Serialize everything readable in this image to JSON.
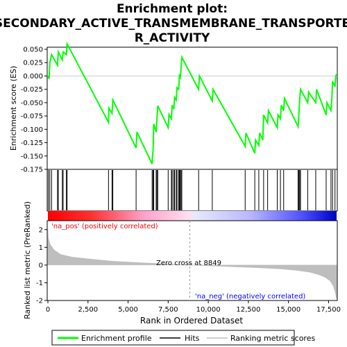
{
  "title_line1": "Enrichment plot:",
  "title_line2": "SECONDARY_ACTIVE_TRANSMEMBRANE_TRANSPORTE",
  "title_line3": "R_ACTIVITY",
  "colors": {
    "es_line": "#00ff00",
    "hits": "#000000",
    "metric": "#bebebe",
    "pos": "#ff0000",
    "neg": "#0000ff"
  },
  "chart_data": {
    "type": "line",
    "xlim": [
      0,
      18000
    ],
    "x_ticks": [
      0,
      2500,
      5000,
      7500,
      10000,
      12500,
      15000,
      17500
    ],
    "x_tick_labels": [
      "0",
      "2,500",
      "5,000",
      "7,500",
      "10,000",
      "12,500",
      "15,000",
      "17,500"
    ],
    "xlabel": "Rank in Ordered Dataset",
    "es_panel": {
      "ylabel": "Enrichment score (ES)",
      "ylim": [
        -0.175,
        0.05
      ],
      "y_ticks": [
        0.05,
        0.025,
        0.0,
        -0.025,
        -0.05,
        -0.075,
        -0.1,
        -0.125,
        -0.15,
        -0.175
      ],
      "y_tick_labels": [
        "0.050",
        "0.025",
        "0.000",
        "-0.025",
        "-0.050",
        "-0.075",
        "-0.100",
        "-0.125",
        "-0.150",
        "-0.175"
      ],
      "series_name": "Enrichment profile",
      "points": [
        [
          0,
          0.0
        ],
        [
          80,
          -0.005
        ],
        [
          120,
          0.025
        ],
        [
          230,
          0.04
        ],
        [
          600,
          0.02
        ],
        [
          650,
          0.045
        ],
        [
          900,
          0.03
        ],
        [
          950,
          0.045
        ],
        [
          1150,
          0.04
        ],
        [
          1200,
          0.06
        ],
        [
          3780,
          -0.087
        ],
        [
          3800,
          -0.06
        ],
        [
          4000,
          -0.07
        ],
        [
          4050,
          -0.045
        ],
        [
          5500,
          -0.135
        ],
        [
          5550,
          -0.105
        ],
        [
          6500,
          -0.165
        ],
        [
          6520,
          -0.15
        ],
        [
          6560,
          -0.14
        ],
        [
          6600,
          -0.09
        ],
        [
          6750,
          -0.105
        ],
        [
          6800,
          -0.08
        ],
        [
          6850,
          -0.056
        ],
        [
          7500,
          -0.097
        ],
        [
          7550,
          -0.072
        ],
        [
          7700,
          -0.08
        ],
        [
          7750,
          -0.055
        ],
        [
          7850,
          -0.062
        ],
        [
          7900,
          -0.04
        ],
        [
          8000,
          -0.045
        ],
        [
          8050,
          -0.022
        ],
        [
          8150,
          -0.025
        ],
        [
          8200,
          0.0
        ],
        [
          8250,
          -0.003
        ],
        [
          8300,
          0.012
        ],
        [
          8350,
          0.035
        ],
        [
          9400,
          -0.025
        ],
        [
          9450,
          0.0
        ],
        [
          10250,
          -0.047
        ],
        [
          10300,
          -0.025
        ],
        [
          12300,
          -0.132
        ],
        [
          12350,
          -0.107
        ],
        [
          12900,
          -0.145
        ],
        [
          12950,
          -0.12
        ],
        [
          13150,
          -0.13
        ],
        [
          13200,
          -0.107
        ],
        [
          13400,
          -0.12
        ],
        [
          13450,
          -0.073
        ],
        [
          13700,
          -0.088
        ],
        [
          13750,
          -0.065
        ],
        [
          14300,
          -0.097
        ],
        [
          14350,
          -0.073
        ],
        [
          14500,
          -0.08
        ],
        [
          14550,
          -0.055
        ],
        [
          14700,
          -0.065
        ],
        [
          14750,
          -0.042
        ],
        [
          15600,
          -0.095
        ],
        [
          15650,
          -0.07
        ],
        [
          15700,
          -0.045
        ],
        [
          15750,
          -0.025
        ],
        [
          16200,
          -0.05
        ],
        [
          16250,
          -0.03
        ],
        [
          16700,
          -0.05
        ],
        [
          16750,
          -0.025
        ],
        [
          17350,
          -0.073
        ],
        [
          17400,
          -0.05
        ],
        [
          17650,
          -0.065
        ],
        [
          17700,
          -0.045
        ],
        [
          17750,
          -0.01
        ],
        [
          17900,
          -0.02
        ],
        [
          17950,
          0.0
        ],
        [
          18000,
          0.003
        ]
      ]
    },
    "hits": {
      "series_name": "Hits",
      "positions": [
        30,
        120,
        230,
        600,
        650,
        900,
        950,
        1150,
        1200,
        3780,
        4000,
        4050,
        5500,
        6500,
        6560,
        6600,
        6750,
        6800,
        6850,
        7500,
        7700,
        7750,
        7850,
        7900,
        8000,
        8050,
        8150,
        8200,
        8250,
        8300,
        8350,
        9400,
        10250,
        12300,
        12900,
        13150,
        13450,
        13700,
        14300,
        14500,
        14700,
        15600,
        15650,
        15700,
        15750,
        16200,
        16700,
        17350,
        17650,
        17750,
        17900
      ]
    },
    "metric_panel": {
      "ylabel": "Ranked list metric (PreRanked)",
      "ylim": [
        -2,
        2.5
      ],
      "y_ticks": [
        2,
        1,
        0,
        -1,
        -2
      ],
      "y_tick_labels": [
        "2",
        "1",
        "0",
        "-1",
        "-2"
      ],
      "series_name": "Ranking metric scores",
      "profile": [
        [
          0,
          2.0
        ],
        [
          40,
          1.5
        ],
        [
          150,
          1.15
        ],
        [
          400,
          0.85
        ],
        [
          800,
          0.6
        ],
        [
          1500,
          0.45
        ],
        [
          2500,
          0.35
        ],
        [
          4000,
          0.22
        ],
        [
          6000,
          0.12
        ],
        [
          8849,
          0.0
        ],
        [
          11000,
          -0.08
        ],
        [
          13000,
          -0.15
        ],
        [
          14500,
          -0.22
        ],
        [
          15500,
          -0.3
        ],
        [
          16300,
          -0.4
        ],
        [
          16900,
          -0.55
        ],
        [
          17300,
          -0.7
        ],
        [
          17600,
          -0.9
        ],
        [
          17800,
          -1.2
        ],
        [
          17900,
          -1.5
        ],
        [
          18000,
          -1.9
        ]
      ],
      "zero_cross_label": "Zero cross at 8849",
      "zero_cross": 8849,
      "pos_label": "'na_pos' (positively correlated)",
      "neg_label": "'na_neg' (negatively correlated)"
    },
    "legend": {
      "placement": "bottom",
      "items": [
        "Enrichment profile",
        "Hits",
        "Ranking metric scores"
      ]
    }
  }
}
